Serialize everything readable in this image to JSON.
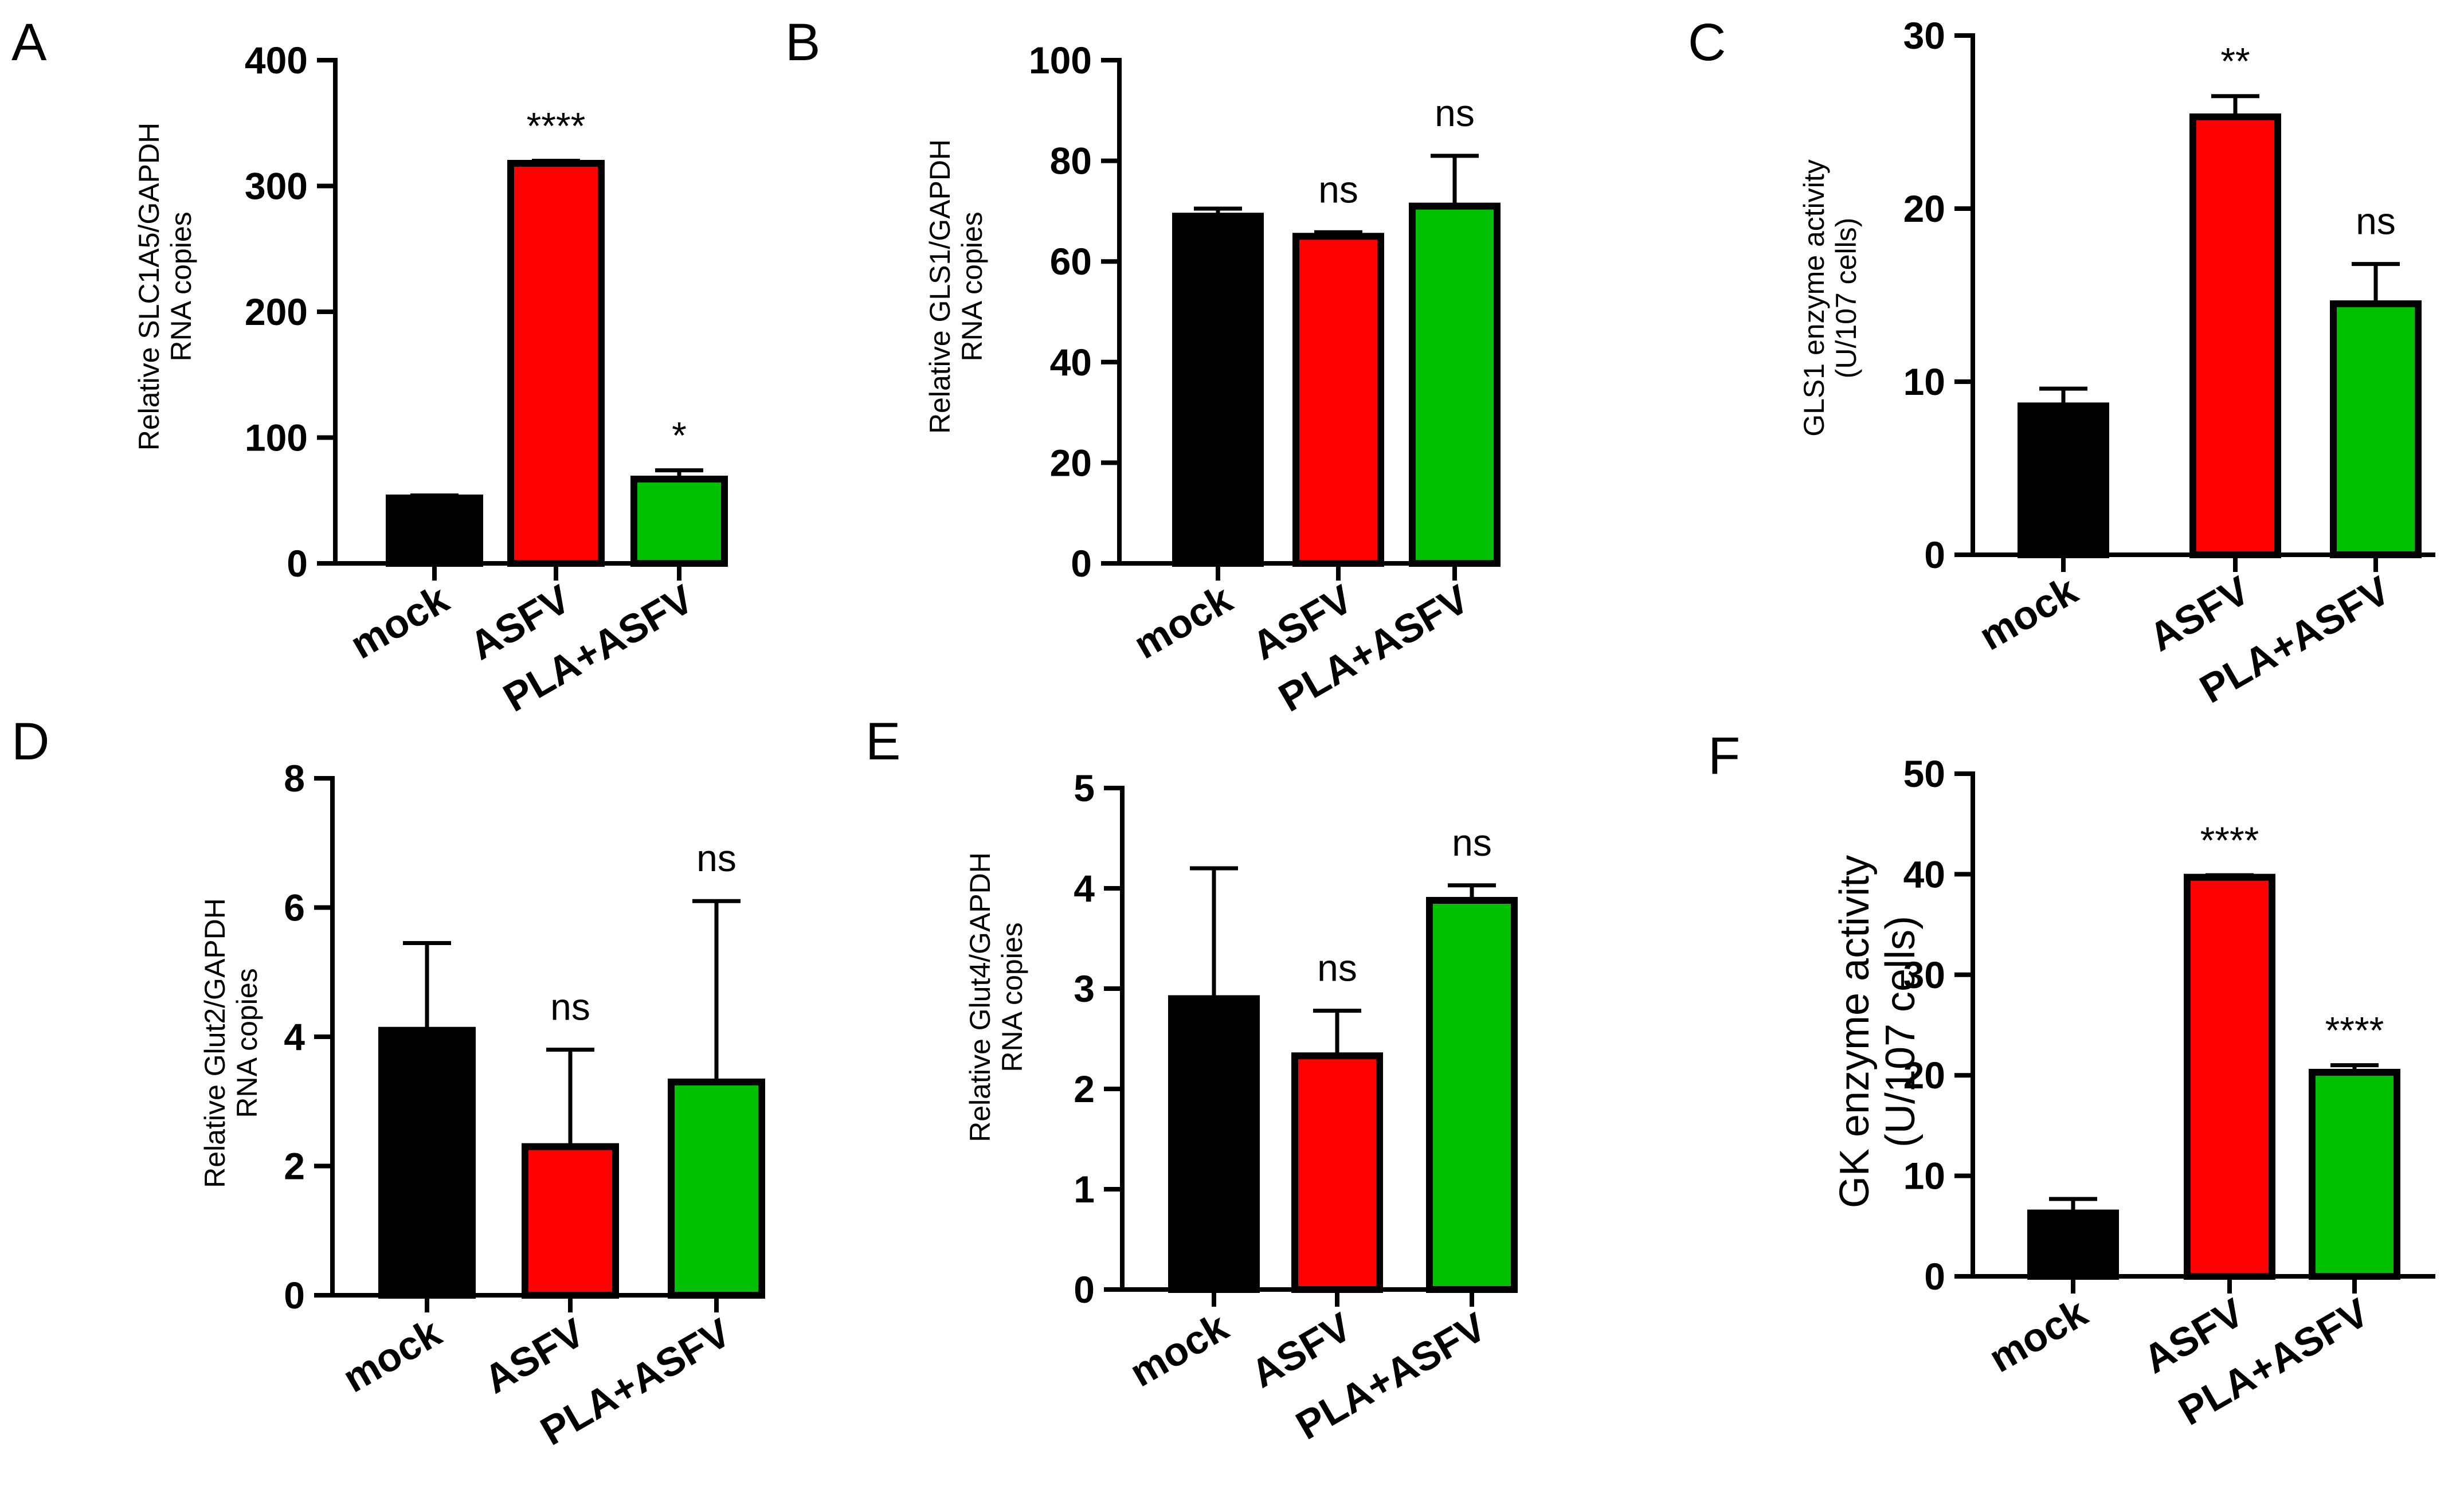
{
  "colors": {
    "mock": "#000000",
    "ASFV": "#ff0000",
    "PLA+ASFV": "#00c000",
    "axis": "#000000"
  },
  "chart_data": [
    {
      "panel": "A",
      "type": "bar",
      "categories": [
        "mock",
        "ASFV",
        "PLA+ASFV"
      ],
      "values": [
        52,
        318,
        67
      ],
      "errors": [
        2,
        2,
        7
      ],
      "annotations": [
        "",
        "****",
        "*"
      ],
      "ylabel": [
        "Relative SLC1A5/GAPDH",
        "RNA copies"
      ],
      "ylim": [
        0,
        400
      ],
      "yticks": [
        0,
        100,
        200,
        300,
        400
      ],
      "grid": false
    },
    {
      "panel": "B",
      "type": "bar",
      "categories": [
        "mock",
        "ASFV",
        "PLA+ASFV"
      ],
      "values": [
        69,
        65,
        71
      ],
      "errors": [
        1.5,
        0.8,
        10
      ],
      "annotations": [
        "",
        "ns",
        "ns"
      ],
      "ylabel": [
        "Relative GLS1/GAPDH",
        "RNA copies"
      ],
      "ylim": [
        0,
        100
      ],
      "yticks": [
        0,
        20,
        40,
        60,
        80,
        100
      ],
      "grid": false
    },
    {
      "panel": "C",
      "type": "bar",
      "categories": [
        "mock",
        "ASFV",
        "PLA+ASFV"
      ],
      "values": [
        8.6,
        25.3,
        14.5
      ],
      "errors": [
        1.0,
        1.2,
        2.3
      ],
      "annotations": [
        "",
        "**",
        "ns"
      ],
      "ylabel": [
        "GLS1 enzyme activity",
        "(U/107 cells)"
      ],
      "ylim": [
        0,
        30
      ],
      "yticks": [
        0,
        10,
        20,
        30
      ],
      "grid": false
    },
    {
      "panel": "D",
      "type": "bar",
      "categories": [
        "mock",
        "ASFV",
        "PLA+ASFV"
      ],
      "values": [
        4.1,
        2.3,
        3.3
      ],
      "errors": [
        1.35,
        1.5,
        2.8
      ],
      "annotations": [
        "",
        "ns",
        "ns"
      ],
      "ylabel": [
        "Relative Glut2/GAPDH",
        "RNA copies"
      ],
      "ylim": [
        0,
        8
      ],
      "yticks": [
        0,
        2,
        4,
        6,
        8
      ],
      "grid": false
    },
    {
      "panel": "E",
      "type": "bar",
      "categories": [
        "mock",
        "ASFV",
        "PLA+ASFV"
      ],
      "values": [
        2.9,
        2.33,
        3.88
      ],
      "errors": [
        1.3,
        0.45,
        0.15
      ],
      "annotations": [
        "",
        "ns",
        "ns"
      ],
      "ylabel": [
        "Relative Glut4/GAPDH",
        "RNA copies"
      ],
      "ylim": [
        0,
        5
      ],
      "yticks": [
        0,
        1,
        2,
        3,
        4,
        5
      ],
      "grid": false
    },
    {
      "panel": "F",
      "type": "bar",
      "categories": [
        "mock",
        "ASFV",
        "PLA+ASFV"
      ],
      "values": [
        6.3,
        39.7,
        20.3
      ],
      "errors": [
        1.4,
        0.2,
        0.7
      ],
      "annotations": [
        "",
        "****",
        "****"
      ],
      "ylabel": [
        "GK enzyme activity",
        "(U/107 cells)"
      ],
      "ylim": [
        0,
        50
      ],
      "yticks": [
        0,
        10,
        20,
        30,
        40,
        50
      ],
      "grid": false
    }
  ]
}
